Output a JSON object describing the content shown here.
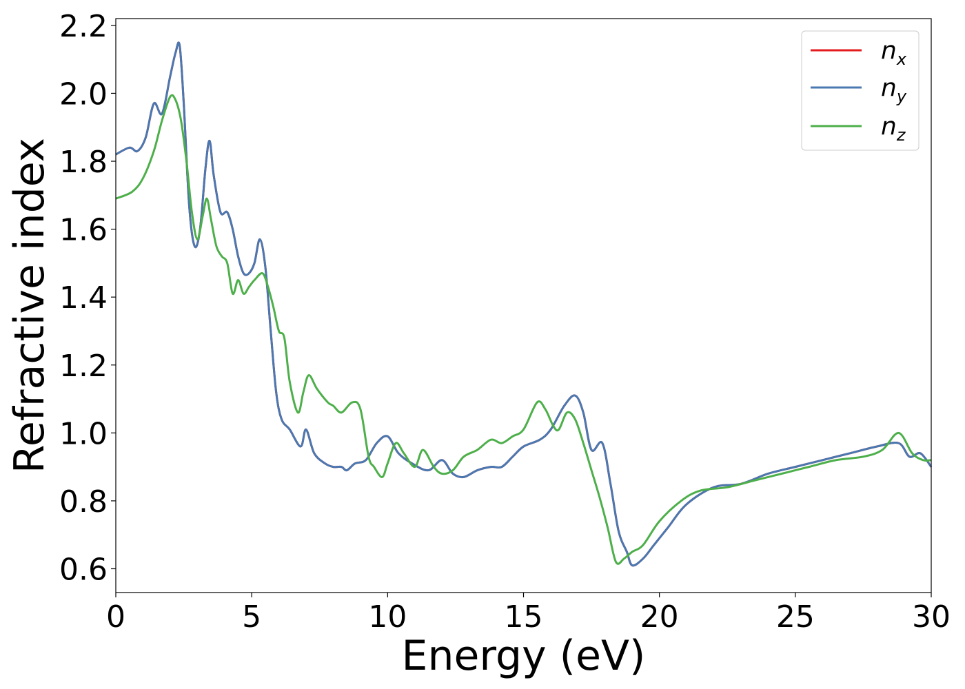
{
  "chart_data": {
    "type": "line",
    "xlabel": "Energy (eV)",
    "ylabel": "Refractive index",
    "xlim": [
      0,
      30
    ],
    "ylim": [
      0.53,
      2.22
    ],
    "xticks": [
      0,
      5,
      10,
      15,
      20,
      25,
      30
    ],
    "yticks": [
      0.6,
      0.8,
      1.0,
      1.2,
      1.4,
      1.6,
      1.8,
      2.0,
      2.2
    ],
    "grid": false,
    "legend_position": "top-right",
    "series": [
      {
        "name": "n_x",
        "legend_main": "n",
        "legend_sub": "x",
        "color": "#e41a1c",
        "x": [
          0,
          0.5,
          0.8,
          1.1,
          1.4,
          1.7,
          2.0,
          2.2,
          2.35,
          2.5,
          2.7,
          2.9,
          3.1,
          3.3,
          3.45,
          3.6,
          3.85,
          4.1,
          4.3,
          4.5,
          4.7,
          4.9,
          5.1,
          5.3,
          5.5,
          5.7,
          5.9,
          6.1,
          6.4,
          6.8,
          7.0,
          7.3,
          7.7,
          8.0,
          8.3,
          8.5,
          8.8,
          9.2,
          9.6,
          10.0,
          10.4,
          10.9,
          11.5,
          12.0,
          12.4,
          12.8,
          13.3,
          13.8,
          14.2,
          14.6,
          15.0,
          15.6,
          16.0,
          16.5,
          16.9,
          17.2,
          17.5,
          17.9,
          18.2,
          18.5,
          18.8,
          19.0,
          19.4,
          19.8,
          20.3,
          21.0,
          22.0,
          23.0,
          24.0,
          25.0,
          26.0,
          27.0,
          28.0,
          28.8,
          29.2,
          29.6,
          30.0
        ],
        "y": [
          1.82,
          1.84,
          1.83,
          1.87,
          1.97,
          1.94,
          2.05,
          2.12,
          2.14,
          1.97,
          1.67,
          1.55,
          1.6,
          1.78,
          1.86,
          1.76,
          1.65,
          1.65,
          1.6,
          1.52,
          1.47,
          1.47,
          1.5,
          1.57,
          1.49,
          1.3,
          1.12,
          1.04,
          1.01,
          0.96,
          1.01,
          0.94,
          0.91,
          0.9,
          0.9,
          0.89,
          0.91,
          0.92,
          0.97,
          0.99,
          0.94,
          0.91,
          0.89,
          0.92,
          0.88,
          0.87,
          0.89,
          0.9,
          0.9,
          0.93,
          0.96,
          0.98,
          1.01,
          1.08,
          1.11,
          1.06,
          0.95,
          0.97,
          0.85,
          0.71,
          0.65,
          0.61,
          0.63,
          0.67,
          0.72,
          0.79,
          0.84,
          0.85,
          0.88,
          0.9,
          0.92,
          0.94,
          0.96,
          0.97,
          0.93,
          0.94,
          0.9
        ]
      },
      {
        "name": "n_y",
        "legend_main": "n",
        "legend_sub": "y",
        "color": "#4a78b0",
        "x": [
          0,
          0.5,
          0.8,
          1.1,
          1.4,
          1.7,
          2.0,
          2.2,
          2.35,
          2.5,
          2.7,
          2.9,
          3.1,
          3.3,
          3.45,
          3.6,
          3.85,
          4.1,
          4.3,
          4.5,
          4.7,
          4.9,
          5.1,
          5.3,
          5.5,
          5.7,
          5.9,
          6.1,
          6.4,
          6.8,
          7.0,
          7.3,
          7.7,
          8.0,
          8.3,
          8.5,
          8.8,
          9.2,
          9.6,
          10.0,
          10.4,
          10.9,
          11.5,
          12.0,
          12.4,
          12.8,
          13.3,
          13.8,
          14.2,
          14.6,
          15.0,
          15.6,
          16.0,
          16.5,
          16.9,
          17.2,
          17.5,
          17.9,
          18.2,
          18.5,
          18.8,
          19.0,
          19.4,
          19.8,
          20.3,
          21.0,
          22.0,
          23.0,
          24.0,
          25.0,
          26.0,
          27.0,
          28.0,
          28.8,
          29.2,
          29.6,
          30.0
        ],
        "y": [
          1.82,
          1.84,
          1.83,
          1.87,
          1.97,
          1.94,
          2.05,
          2.12,
          2.14,
          1.97,
          1.67,
          1.55,
          1.6,
          1.78,
          1.86,
          1.76,
          1.65,
          1.65,
          1.6,
          1.52,
          1.47,
          1.47,
          1.5,
          1.57,
          1.49,
          1.3,
          1.12,
          1.04,
          1.01,
          0.96,
          1.01,
          0.94,
          0.91,
          0.9,
          0.9,
          0.89,
          0.91,
          0.92,
          0.97,
          0.99,
          0.94,
          0.91,
          0.89,
          0.92,
          0.88,
          0.87,
          0.89,
          0.9,
          0.9,
          0.93,
          0.96,
          0.98,
          1.01,
          1.08,
          1.11,
          1.06,
          0.95,
          0.97,
          0.85,
          0.71,
          0.65,
          0.61,
          0.63,
          0.67,
          0.72,
          0.79,
          0.84,
          0.85,
          0.88,
          0.9,
          0.92,
          0.94,
          0.96,
          0.97,
          0.93,
          0.94,
          0.9
        ]
      },
      {
        "name": "n_z",
        "legend_main": "n",
        "legend_sub": "z",
        "color": "#4daf4a",
        "x": [
          0,
          0.6,
          1.0,
          1.4,
          1.7,
          2.0,
          2.2,
          2.4,
          2.6,
          2.8,
          3.0,
          3.2,
          3.35,
          3.5,
          3.7,
          3.9,
          4.1,
          4.3,
          4.5,
          4.7,
          4.9,
          5.1,
          5.4,
          5.6,
          5.8,
          6.0,
          6.2,
          6.4,
          6.7,
          6.9,
          7.1,
          7.4,
          7.8,
          8.0,
          8.3,
          8.7,
          9.0,
          9.3,
          9.5,
          9.8,
          10.0,
          10.3,
          10.6,
          11.0,
          11.3,
          11.7,
          12.0,
          12.4,
          12.8,
          13.3,
          13.8,
          14.2,
          14.6,
          15.0,
          15.5,
          15.8,
          16.1,
          16.3,
          16.6,
          16.9,
          17.2,
          17.5,
          17.8,
          18.1,
          18.4,
          18.7,
          19.0,
          19.4,
          20.0,
          20.8,
          21.5,
          22.5,
          23.5,
          24.5,
          25.5,
          26.5,
          27.5,
          28.2,
          28.8,
          29.3,
          29.7,
          30.0
        ],
        "y": [
          1.69,
          1.71,
          1.75,
          1.83,
          1.92,
          1.99,
          1.98,
          1.92,
          1.8,
          1.65,
          1.57,
          1.64,
          1.69,
          1.63,
          1.55,
          1.52,
          1.5,
          1.41,
          1.45,
          1.41,
          1.43,
          1.45,
          1.47,
          1.43,
          1.37,
          1.3,
          1.28,
          1.15,
          1.06,
          1.12,
          1.17,
          1.13,
          1.09,
          1.08,
          1.06,
          1.09,
          1.07,
          0.93,
          0.9,
          0.87,
          0.91,
          0.97,
          0.94,
          0.9,
          0.95,
          0.9,
          0.88,
          0.89,
          0.93,
          0.95,
          0.98,
          0.97,
          0.99,
          1.01,
          1.09,
          1.07,
          1.02,
          1.01,
          1.06,
          1.04,
          0.97,
          0.89,
          0.81,
          0.72,
          0.62,
          0.63,
          0.65,
          0.67,
          0.74,
          0.8,
          0.83,
          0.84,
          0.86,
          0.88,
          0.9,
          0.92,
          0.93,
          0.95,
          1.0,
          0.94,
          0.92,
          0.92
        ]
      }
    ]
  }
}
